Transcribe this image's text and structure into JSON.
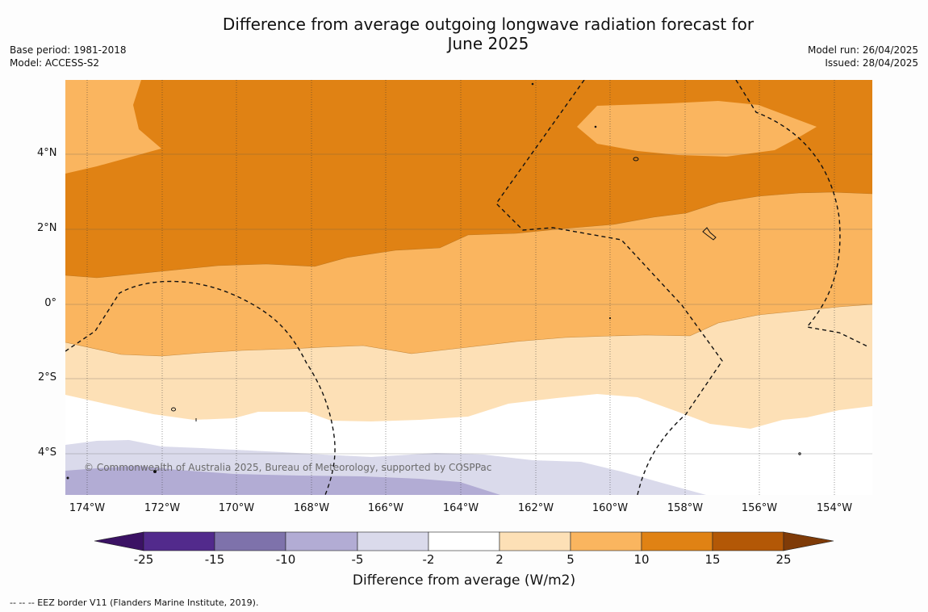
{
  "title": "Difference from average outgoing longwave radiation forecast for June 2025",
  "title_lines": [
    "Difference from average outgoing longwave radiation forecast for",
    "June 2025"
  ],
  "info_left": [
    "Base period: 1981-2018",
    "Model: ACCESS-S2"
  ],
  "info_right": [
    "Model run: 26/04/2025",
    "Issued: 28/04/2025"
  ],
  "copyright": "© Commonwealth of Australia 2025, Bureau of Meteorology, supported by COSPPac",
  "lat_labels": [
    "4°N",
    "2°N",
    "0°",
    "2°S",
    "4°S"
  ],
  "lon_labels": [
    "174°W",
    "172°W",
    "170°W",
    "168°W",
    "166°W",
    "164°W",
    "162°W",
    "160°W",
    "158°W",
    "156°W",
    "154°W"
  ],
  "colorbar": {
    "title": "Difference from average (W/m2)",
    "ticks": [
      "-25",
      "-15",
      "-10",
      "-5",
      "-2",
      "2",
      "5",
      "10",
      "15",
      "25"
    ],
    "colors": [
      "#3b1264",
      "#522a8c",
      "#7e72ab",
      "#b2acd4",
      "#dadaeb",
      "#ffffff",
      "#fde0b6",
      "#fab55f",
      "#e08214",
      "#b35806",
      "#7f3b08"
    ]
  },
  "footnote": "--  --  -- EEZ border V11 (Flanders Marine Institute, 2019)."
}
